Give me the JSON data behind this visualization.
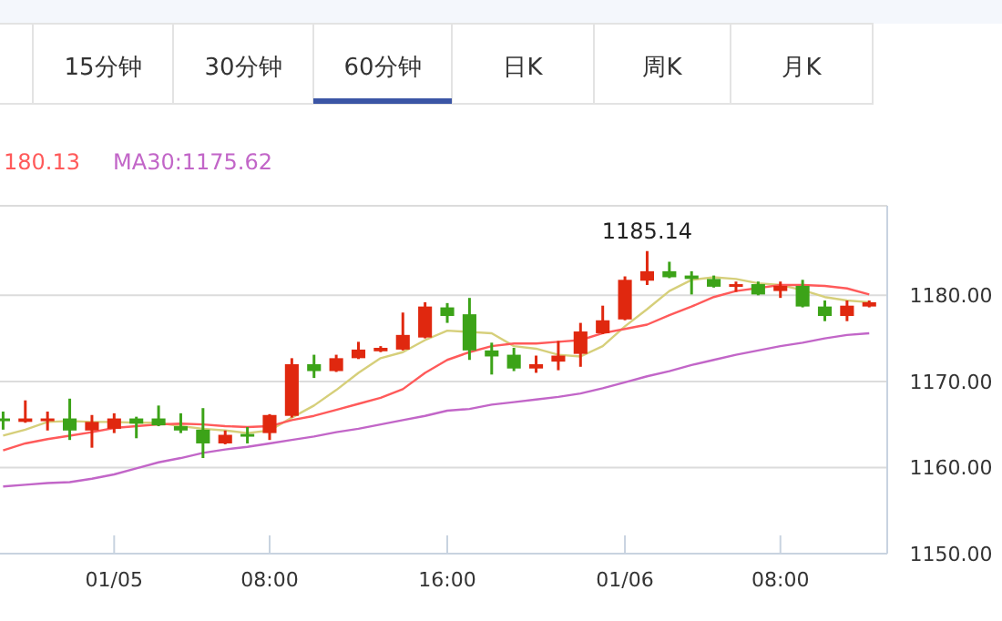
{
  "chart_data": [
    {
      "type": "other",
      "annotations": [
        "15分钟",
        "30分钟",
        "60分钟",
        "日K",
        "周K",
        "月K"
      ]
    },
    {
      "type": "candlestick",
      "categories": [
        null,
        null,
        null,
        null,
        null,
        "01/05",
        null,
        null,
        null,
        null,
        null,
        null,
        "08:00",
        null,
        null,
        null,
        null,
        null,
        null,
        null,
        "16:00",
        null,
        null,
        null,
        null,
        null,
        null,
        null,
        "01/06",
        null,
        null,
        null,
        null,
        null,
        null,
        "08:00",
        null,
        null,
        null,
        null
      ],
      "ohlc": [
        [
          1165.7,
          1166.5,
          1164.4,
          1165.4
        ],
        [
          1165.3,
          1167.8,
          1165.2,
          1165.7
        ],
        [
          1165.5,
          1166.5,
          1164.3,
          1165.7
        ],
        [
          1165.7,
          1168.0,
          1163.2,
          1164.3
        ],
        [
          1164.3,
          1166.1,
          1162.3,
          1165.3
        ],
        [
          1164.5,
          1166.3,
          1164.0,
          1165.7
        ],
        [
          1165.7,
          1165.9,
          1163.4,
          1165.1
        ],
        [
          1165.7,
          1167.2,
          1164.8,
          1164.9
        ],
        [
          1164.8,
          1166.3,
          1164.0,
          1164.3
        ],
        [
          1164.4,
          1166.9,
          1161.1,
          1162.8
        ],
        [
          1162.8,
          1164.3,
          1162.7,
          1163.8
        ],
        [
          1163.9,
          1164.7,
          1162.8,
          1163.7
        ],
        [
          1164.0,
          1166.2,
          1163.2,
          1166.1
        ],
        [
          1166.0,
          1172.7,
          1165.8,
          1172.0
        ],
        [
          1172.0,
          1173.1,
          1170.4,
          1171.2
        ],
        [
          1171.2,
          1173.1,
          1171.1,
          1172.7
        ],
        [
          1172.7,
          1174.6,
          1172.6,
          1173.7
        ],
        [
          1173.5,
          1174.1,
          1173.4,
          1173.9
        ],
        [
          1173.7,
          1178.0,
          1173.6,
          1175.4
        ],
        [
          1175.1,
          1179.2,
          1175.0,
          1178.7
        ],
        [
          1178.6,
          1179.1,
          1176.8,
          1177.6
        ],
        [
          1177.8,
          1179.7,
          1172.5,
          1173.6
        ],
        [
          1173.6,
          1174.5,
          1170.8,
          1172.9
        ],
        [
          1173.1,
          1173.9,
          1171.2,
          1171.5
        ],
        [
          1171.5,
          1173.0,
          1171.0,
          1172.0
        ],
        [
          1172.3,
          1174.7,
          1171.3,
          1173.0
        ],
        [
          1173.2,
          1176.8,
          1171.7,
          1175.8
        ],
        [
          1175.6,
          1178.8,
          1175.5,
          1177.1
        ],
        [
          1177.2,
          1182.2,
          1177.1,
          1181.8
        ],
        [
          1181.7,
          1185.14,
          1181.2,
          1182.8
        ],
        [
          1182.8,
          1183.9,
          1182.0,
          1182.1
        ],
        [
          1182.3,
          1182.8,
          1180.1,
          1181.9
        ],
        [
          1181.9,
          1182.3,
          1180.9,
          1181.0
        ],
        [
          1181.0,
          1181.6,
          1180.4,
          1181.3
        ],
        [
          1181.3,
          1181.6,
          1180.0,
          1180.1
        ],
        [
          1180.5,
          1181.6,
          1179.7,
          1181.1
        ],
        [
          1181.1,
          1181.8,
          1178.6,
          1178.7
        ],
        [
          1178.7,
          1179.4,
          1177.0,
          1177.6
        ],
        [
          1177.6,
          1179.4,
          1177.0,
          1178.8
        ],
        [
          1178.7,
          1179.4,
          1178.6,
          1179.2
        ]
      ],
      "colors": [
        "#3ca318",
        "#e0280f",
        "#e0280f",
        "#3ca318",
        "#e0280f",
        "#e0280f",
        "#3ca318",
        "#3ca318",
        "#3ca318",
        "#3ca318",
        "#e0280f",
        "#3ca318",
        "#e0280f",
        "#e0280f",
        "#3ca318",
        "#e0280f",
        "#e0280f",
        "#e0280f",
        "#e0280f",
        "#e0280f",
        "#3ca318",
        "#3ca318",
        "#3ca318",
        "#3ca318",
        "#e0280f",
        "#e0280f",
        "#e0280f",
        "#e0280f",
        "#e0280f",
        "#e0280f",
        "#3ca318",
        "#3ca318",
        "#3ca318",
        "#e0280f",
        "#3ca318",
        "#e0280f",
        "#3ca318",
        "#3ca318",
        "#e0280f",
        "#e0280f"
      ],
      "series": [
        {
          "type": "line",
          "color": "#d6cf7a",
          "values": [
            1163.7,
            1164.4,
            1165.3,
            1165.4,
            1165.3,
            1165.3,
            1165.2,
            1165.2,
            1164.8,
            1164.5,
            1164.3,
            1164.0,
            1164.3,
            1165.8,
            1167.2,
            1169.0,
            1171.0,
            1172.7,
            1173.4,
            1174.8,
            1175.9,
            null,
            1175.6,
            1174.1,
            1173.8,
            1173.1,
            1172.9,
            1174.1,
            1176.4,
            1178.4,
            1180.5,
            1181.8,
            1182.1,
            1181.9,
            1181.4,
            1181.2,
            1180.6,
            1179.8,
            1179.4,
            1179.2
          ]
        },
        {
          "type": "line",
          "name": "180.13",
          "color": "#ff5a5a",
          "values": [
            1162.0,
            1162.8,
            1163.3,
            1163.7,
            1164.1,
            1164.6,
            1164.8,
            1165.0,
            1165.1,
            1165.0,
            1164.8,
            1164.7,
            1164.8,
            1165.5,
            1166.0,
            1166.7,
            1167.4,
            1168.1,
            1169.1,
            1171.0,
            1172.5,
            1173.4,
            1174.1,
            1174.4,
            1174.4,
            1174.6,
            1174.8,
            1175.6,
            1176.1,
            1176.6,
            1177.7,
            1178.7,
            1179.8,
            1180.5,
            null,
            1181.2,
            1181.2,
            1181.1,
            1180.8,
            1180.1
          ]
        },
        {
          "type": "line",
          "name": "MA30:1175.62",
          "color": "#c266c8",
          "values": [
            1157.8,
            1158.0,
            1158.2,
            1158.3,
            1158.7,
            1159.2,
            1159.9,
            1160.6,
            1161.1,
            1161.7,
            1162.1,
            1162.4,
            1162.8,
            1163.2,
            1163.6,
            1164.1,
            1164.5,
            1165.0,
            1165.5,
            1166.0,
            1166.6,
            1166.8,
            1167.3,
            1167.6,
            1167.9,
            1168.2,
            1168.6,
            1169.2,
            1169.9,
            1170.6,
            1171.2,
            1171.9,
            1172.5,
            1173.1,
            1173.6,
            1174.1,
            1174.5,
            1175.0,
            1175.4,
            1175.6
          ]
        }
      ],
      "ylim": [
        1150,
        1190.4
      ],
      "yticks": [
        {
          "value": 1150,
          "label": "1150.00"
        },
        {
          "value": 1160,
          "label": "1160.00"
        },
        {
          "value": 1170,
          "label": "1170.00"
        },
        {
          "value": 1180,
          "label": "1180.00"
        }
      ],
      "grid": "y",
      "legend": "top left",
      "annotations": [
        {
          "text": "1185.14",
          "y": 1185.14
        }
      ]
    }
  ]
}
